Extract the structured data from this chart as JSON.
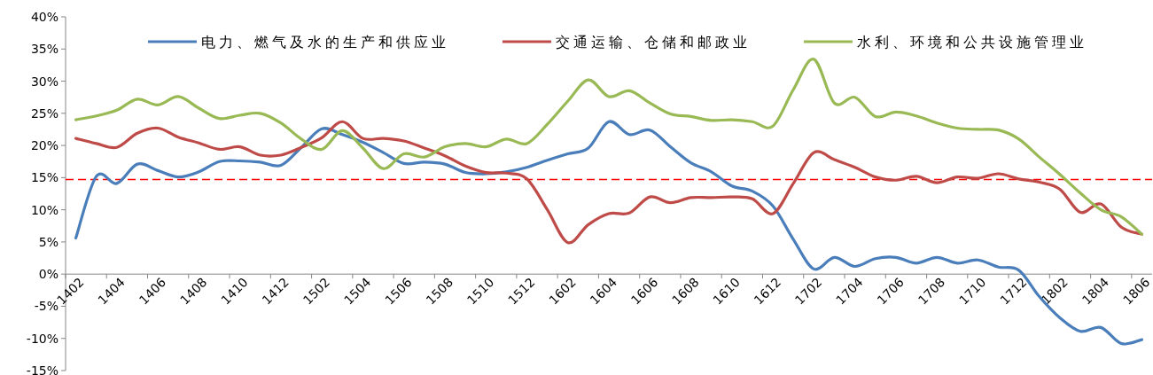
{
  "chart_data": {
    "type": "line",
    "categories": [
      "1402",
      null,
      "1404",
      null,
      "1406",
      null,
      "1408",
      null,
      "1410",
      null,
      "1412",
      null,
      "1502",
      null,
      "1504",
      null,
      "1506",
      null,
      "1508",
      null,
      "1510",
      null,
      "1512",
      null,
      "1602",
      null,
      "1604",
      null,
      "1606",
      null,
      "1608",
      null,
      "1610",
      null,
      "1612",
      null,
      "1702",
      null,
      "1704",
      null,
      "1706",
      null,
      "1708",
      null,
      "1710",
      null,
      "1712",
      null,
      "1802",
      null,
      "1804",
      null,
      "1806"
    ],
    "series": [
      {
        "name": "电力、燃气及水的生产和供应业",
        "color": "#4a7ebb",
        "values": [
          5.6,
          15.2,
          14.1,
          17.1,
          16.1,
          15.1,
          15.9,
          17.5,
          17.6,
          17.4,
          16.9,
          19.7,
          22.6,
          21.7,
          20.5,
          18.9,
          17.2,
          17.4,
          17.1,
          15.8,
          15.6,
          15.9,
          16.6,
          17.7,
          18.7,
          19.6,
          23.7,
          21.7,
          22.4,
          19.8,
          17.3,
          15.9,
          13.7,
          12.9,
          10.6,
          5.4,
          0.8,
          2.6,
          1.2,
          2.4,
          2.6,
          1.7,
          2.6,
          1.7,
          2.2,
          1.1,
          0.6,
          -3.5,
          -6.8,
          -8.9,
          -8.3,
          -10.8,
          -10.2
        ]
      },
      {
        "name": "交通运输、仓储和邮政业",
        "color": "#be4b48",
        "values": [
          21.1,
          20.3,
          19.7,
          21.9,
          22.7,
          21.3,
          20.4,
          19.4,
          19.8,
          18.5,
          18.5,
          19.7,
          21.2,
          23.7,
          21.1,
          21.1,
          20.7,
          19.6,
          18.4,
          16.8,
          15.8,
          15.7,
          14.8,
          10.0,
          4.9,
          7.7,
          9.4,
          9.5,
          12.0,
          11.1,
          11.9,
          11.9,
          12.0,
          11.7,
          9.4,
          14.1,
          18.9,
          17.8,
          16.6,
          15.1,
          14.6,
          15.2,
          14.2,
          15.1,
          14.9,
          15.6,
          14.8,
          14.3,
          13.2,
          9.6,
          10.9,
          7.3,
          6.2
        ]
      },
      {
        "name": "水利、环境和公共设施管理业",
        "color": "#98b954",
        "values": [
          24.0,
          24.6,
          25.5,
          27.2,
          26.3,
          27.6,
          25.8,
          24.2,
          24.7,
          25.0,
          23.5,
          21.0,
          19.4,
          22.3,
          19.6,
          16.4,
          18.7,
          18.2,
          19.8,
          20.3,
          19.8,
          21.0,
          20.3,
          23.3,
          26.9,
          30.2,
          27.6,
          28.5,
          26.6,
          24.9,
          24.5,
          23.9,
          24.0,
          23.7,
          23.0,
          28.7,
          33.4,
          26.6,
          27.5,
          24.5,
          25.2,
          24.6,
          23.5,
          22.7,
          22.5,
          22.4,
          21.0,
          18.2,
          15.5,
          12.6,
          10.0,
          8.9,
          6.2
        ]
      }
    ],
    "ylim": [
      -15,
      40
    ],
    "yticks": [
      {
        "value": -15,
        "label": "-15%"
      },
      {
        "value": -10,
        "label": "-10%"
      },
      {
        "value": -5,
        "label": "-5%"
      },
      {
        "value": 0,
        "label": "0%"
      },
      {
        "value": 5,
        "label": "5%"
      },
      {
        "value": 10,
        "label": "10%"
      },
      {
        "value": 15,
        "label": "15%"
      },
      {
        "value": 20,
        "label": "20%"
      },
      {
        "value": 25,
        "label": "25%"
      },
      {
        "value": 30,
        "label": "30%"
      },
      {
        "value": 35,
        "label": "35%"
      },
      {
        "value": 40,
        "label": "40%"
      }
    ],
    "ref_lines": [
      {
        "axis": "y",
        "value": 14.7,
        "color": "#ff0000",
        "line_style": "dashed"
      }
    ],
    "legend": "top"
  }
}
